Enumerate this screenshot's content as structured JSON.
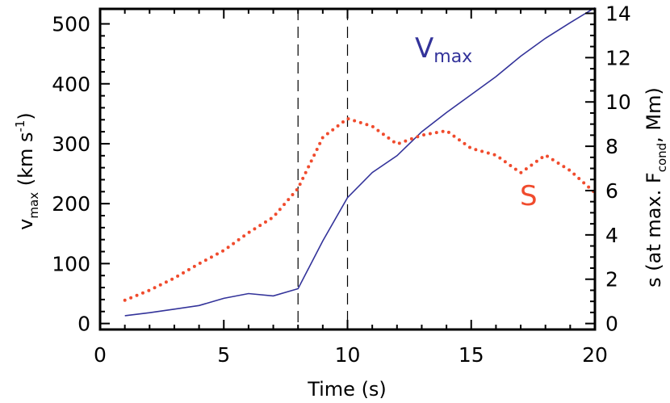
{
  "chart_data": {
    "type": "line",
    "x_axis": {
      "label": "Time (s)",
      "range": [
        0,
        20
      ],
      "ticks": [
        0,
        5,
        10,
        15,
        20
      ]
    },
    "y_axis_left": {
      "label_main": "v",
      "label_sub": "max",
      "label_unit_open": " (km s",
      "label_unit_sup": "-1",
      "label_unit_close": ")",
      "range": [
        -10,
        525
      ],
      "ticks": [
        0,
        100,
        200,
        300,
        400,
        500
      ]
    },
    "y_axis_right": {
      "label_pre": "s (at max. F",
      "label_sub": "cond",
      "label_post": ", Mm)",
      "range": [
        -0.27,
        14.2
      ],
      "ticks": [
        0,
        2,
        4,
        6,
        8,
        10,
        12,
        14
      ]
    },
    "vertical_lines": [
      8,
      10
    ],
    "series": [
      {
        "name": "V",
        "name_sub": "max",
        "axis": "left",
        "style": "solid",
        "color": "#33339a",
        "x": [
          1,
          2,
          3,
          4,
          5,
          6,
          7,
          8,
          9,
          10,
          11,
          12,
          13,
          14,
          15,
          16,
          17,
          18,
          19,
          20
        ],
        "y": [
          13,
          18,
          24,
          30,
          42,
          50,
          46,
          58,
          138,
          210,
          252,
          280,
          320,
          352,
          382,
          412,
          446,
          476,
          502,
          527
        ]
      },
      {
        "name": "S",
        "axis": "right",
        "style": "dotted",
        "color": "#f04b2d",
        "x": [
          1,
          2,
          3,
          4,
          5,
          6,
          7,
          8,
          9,
          10,
          11,
          12,
          13,
          14,
          15,
          16,
          17,
          18,
          19,
          20
        ],
        "y": [
          1.05,
          1.5,
          2.05,
          2.7,
          3.3,
          4.1,
          4.8,
          6.1,
          8.4,
          9.25,
          8.9,
          8.1,
          8.5,
          8.7,
          7.9,
          7.6,
          6.8,
          7.6,
          6.9,
          5.9
        ]
      }
    ]
  }
}
